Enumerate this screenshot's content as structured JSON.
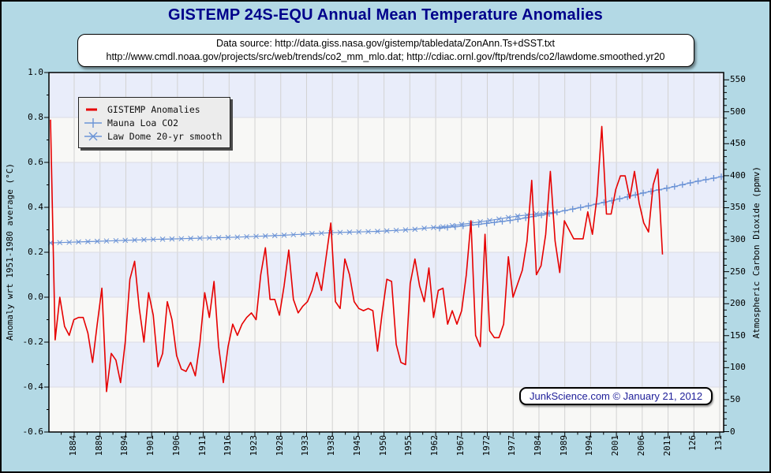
{
  "title": "GISTEMP 24S-EQU Annual Mean Temperature Anomalies",
  "source_box": {
    "line1": "Data source: http://data.giss.nasa.gov/gistemp/tabledata/ZonAnn.Ts+dSST.txt",
    "line2": "http://www.cmdl.noaa.gov/projects/src/web/trends/co2_mm_mlo.dat; http://cdiac.ornl.gov/ftp/trends/co2/lawdome.smoothed.yr20"
  },
  "stamp": "JunkScience.com © January 21, 2012",
  "legend": [
    {
      "label": "GISTEMP Anomalies",
      "marker": "red-line"
    },
    {
      "label": "Mauna Loa CO2",
      "marker": "blue-plus"
    },
    {
      "label": "Law Dome 20-yr smooth",
      "marker": "blue-x-line"
    }
  ],
  "colors": {
    "page_bg": "#b3d9e5",
    "title_text": "#00008b",
    "band_light": "#f8f8f6",
    "band_lavender": "#e9edfa",
    "grid_vertical": "#d2d2d2",
    "grid_horizontal": "#dcdce4",
    "gistemp_red": "#e60000",
    "co2_blue": "#6b93d6",
    "legend_bg": "#ececec",
    "stamp_text": "#20209a"
  },
  "chart_data": {
    "type": "line",
    "title": "GISTEMP 24S-EQU Annual Mean Temperature Anomalies",
    "grid": true,
    "legend_position": "top-left-inside",
    "left_axis": {
      "label": "Anomaly wrt 1951-1980 average (°C)",
      "min": -0.6,
      "max": 1.0,
      "tick_step": 0.2,
      "minor_step": 0.1,
      "tick_labels": [
        "1.0",
        "0.8",
        "0.6",
        "0.4",
        "0.2",
        "0.0",
        "-0.2",
        "-0.4",
        "-0.6"
      ]
    },
    "right_axis": {
      "label": "Atmospheric Carbon Dioxide (ppmv)",
      "min": 0,
      "max": 550,
      "tick_step": 50,
      "minor_step": 10,
      "tick_labels": [
        "550",
        "500",
        "450",
        "400",
        "350",
        "300",
        "250",
        "200",
        "150",
        "100",
        "50",
        "0"
      ]
    },
    "x_axis": {
      "note": "categorical axis; 26 evenly spaced labeled ticks as printed on the chart",
      "tick_labels": [
        "1884",
        "1889",
        "1894",
        "1901",
        "1906",
        "1911",
        "1916",
        "1923",
        "1928",
        "1933",
        "1938",
        "1945",
        "1950",
        "1955",
        "1962",
        "1967",
        "1972",
        "1977",
        "1984",
        "1989",
        "1994",
        "2001",
        "2006",
        "2011",
        "126",
        "131"
      ]
    },
    "series": [
      {
        "name": "GISTEMP Anomalies",
        "axis": "left",
        "color": "#e60000",
        "marker": "none",
        "start_year": 1880,
        "end_year": 2011,
        "values": [
          0.79,
          -0.19,
          0.0,
          -0.13,
          -0.17,
          -0.1,
          -0.09,
          -0.09,
          -0.16,
          -0.29,
          -0.12,
          0.04,
          -0.42,
          -0.25,
          -0.28,
          -0.38,
          -0.2,
          0.08,
          0.16,
          -0.05,
          -0.2,
          0.02,
          -0.08,
          -0.31,
          -0.25,
          -0.02,
          -0.1,
          -0.26,
          -0.32,
          -0.33,
          -0.29,
          -0.35,
          -0.2,
          0.02,
          -0.09,
          0.07,
          -0.22,
          -0.38,
          -0.22,
          -0.12,
          -0.17,
          -0.12,
          -0.09,
          -0.07,
          -0.1,
          0.1,
          0.22,
          -0.01,
          -0.01,
          -0.08,
          0.05,
          0.21,
          -0.01,
          -0.07,
          -0.04,
          -0.02,
          0.03,
          0.11,
          0.03,
          0.18,
          0.33,
          -0.02,
          -0.05,
          0.17,
          0.1,
          -0.02,
          -0.05,
          -0.06,
          -0.05,
          -0.06,
          -0.24,
          -0.07,
          0.08,
          0.07,
          -0.21,
          -0.29,
          -0.3,
          0.06,
          0.17,
          0.05,
          -0.02,
          0.13,
          -0.09,
          0.03,
          0.04,
          -0.12,
          -0.06,
          -0.12,
          -0.06,
          0.1,
          0.34,
          -0.17,
          -0.22,
          0.28,
          -0.15,
          -0.18,
          -0.18,
          -0.12,
          0.18,
          0.0,
          0.06,
          0.12,
          0.25,
          0.52,
          0.1,
          0.14,
          0.28,
          0.56,
          0.25,
          0.11,
          0.34,
          0.3,
          0.26,
          0.26,
          0.26,
          0.38,
          0.28,
          0.45,
          0.76,
          0.37,
          0.37,
          0.48,
          0.54,
          0.54,
          0.44,
          0.56,
          0.42,
          0.33,
          0.29,
          0.5,
          0.57,
          0.19
        ]
      },
      {
        "name": "Law Dome 20-yr smooth",
        "axis": "right",
        "color": "#6b93d6",
        "marker": "x",
        "start_year": 1880,
        "year_step": 2,
        "values": [
          295.0,
          295.5,
          296.0,
          296.5,
          297.0,
          297.5,
          298.0,
          298.5,
          299.0,
          299.5,
          300.0,
          300.4,
          300.8,
          301.2,
          301.6,
          302.0,
          302.4,
          302.8,
          303.2,
          303.6,
          304.0,
          304.6,
          305.2,
          305.8,
          306.4,
          307.0,
          307.8,
          308.6,
          309.4,
          310.2,
          311.0,
          311.4,
          311.8,
          312.2,
          312.6,
          313.0,
          313.8,
          314.6,
          315.4,
          316.2,
          318.0,
          319.0,
          320.2,
          322.0,
          324.0,
          326.0,
          328.0,
          330.0,
          332.4,
          334.8,
          337.0,
          338.6,
          340.2,
          341.6,
          343.0
        ]
      },
      {
        "name": "Mauna Loa CO2",
        "axis": "right",
        "color": "#6b93d6",
        "marker": "+",
        "note": "plotted positions as drawn; x is fraction of plot width, value is ppmv",
        "points_frac": [
          [
            0.579,
            318.0
          ],
          [
            0.5906,
            319.2
          ],
          [
            0.6022,
            320.3
          ],
          [
            0.6138,
            321.5
          ],
          [
            0.6254,
            322.7
          ],
          [
            0.637,
            324.0
          ],
          [
            0.6486,
            325.5
          ],
          [
            0.6602,
            327.1
          ],
          [
            0.6719,
            328.6
          ],
          [
            0.6835,
            330.1
          ],
          [
            0.6951,
            332.0
          ],
          [
            0.7067,
            334.1
          ],
          [
            0.7183,
            336.3
          ],
          [
            0.7299,
            338.5
          ],
          [
            0.7415,
            340.7
          ],
          [
            0.7531,
            343.0
          ],
          [
            0.7647,
            345.5
          ],
          [
            0.7763,
            347.9
          ],
          [
            0.7879,
            350.4
          ],
          [
            0.7995,
            352.9
          ],
          [
            0.8112,
            355.6
          ],
          [
            0.8228,
            358.4
          ],
          [
            0.8344,
            361.1
          ],
          [
            0.846,
            364.0
          ],
          [
            0.8576,
            367.0
          ],
          [
            0.8692,
            370.0
          ],
          [
            0.8808,
            373.0
          ],
          [
            0.8924,
            375.5
          ],
          [
            0.904,
            378.0
          ],
          [
            0.9157,
            380.5
          ],
          [
            0.9273,
            383.2
          ],
          [
            0.9389,
            386.0
          ],
          [
            0.9505,
            388.8
          ],
          [
            0.9621,
            391.5
          ],
          [
            0.9737,
            393.8
          ],
          [
            0.9853,
            396.2
          ],
          [
            0.9965,
            398.5
          ]
        ]
      }
    ]
  }
}
